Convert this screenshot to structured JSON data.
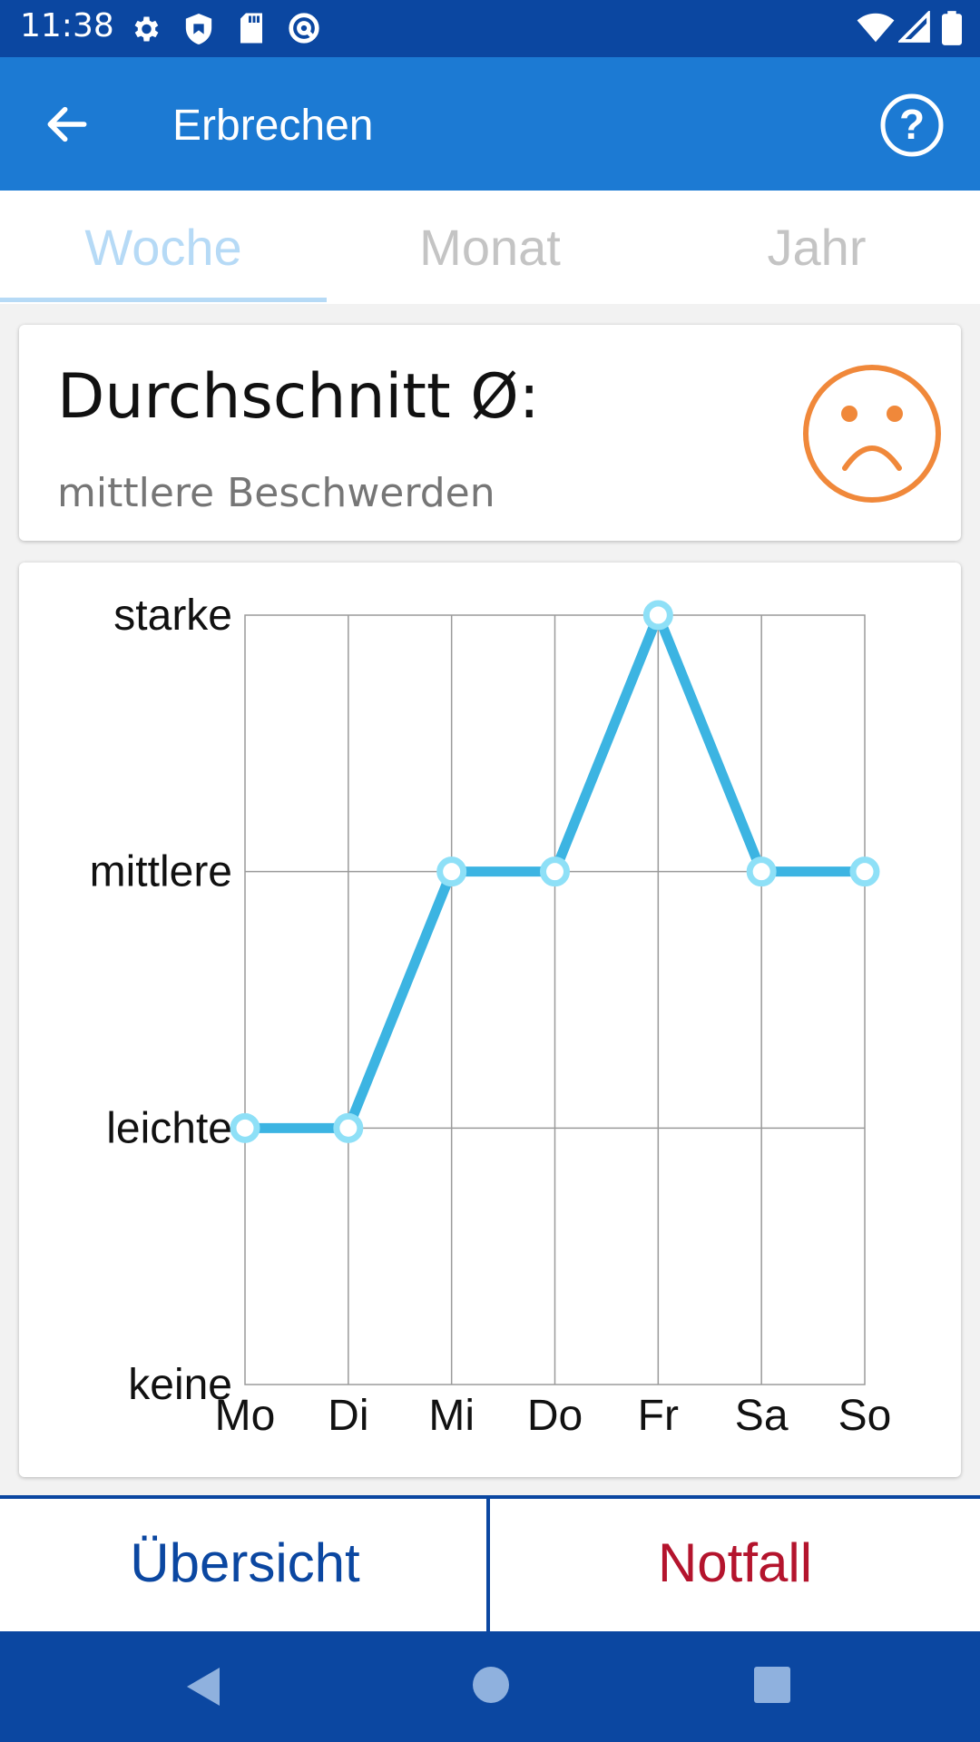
{
  "status": {
    "time": "11:38"
  },
  "appbar": {
    "title": "Erbrechen"
  },
  "tabs": [
    {
      "label": "Woche",
      "active": true
    },
    {
      "label": "Monat",
      "active": false
    },
    {
      "label": "Jahr",
      "active": false
    }
  ],
  "summary": {
    "heading": "Durchschnitt Ø:",
    "subtitle": "mittlere Beschwerden",
    "face_icon": "sad-face-icon",
    "face_color": "#f0883a"
  },
  "chart_data": {
    "type": "line",
    "categories": [
      "Mo",
      "Di",
      "Mi",
      "Do",
      "Fr",
      "Sa",
      "So"
    ],
    "y_levels": [
      "keine",
      "leichte",
      "mittlere",
      "starke"
    ],
    "values": [
      1,
      1,
      2,
      2,
      3,
      2,
      2
    ],
    "ylim": [
      0,
      3
    ],
    "grid": true,
    "line_color": "#3cb4e2",
    "marker_color": "#8ee0f7"
  },
  "buttons": {
    "overview": "Übersicht",
    "emergency": "Notfall"
  },
  "colors": {
    "primary": "#0b47a1",
    "appbar": "#1c7ad3",
    "emergency": "#b4142d"
  }
}
